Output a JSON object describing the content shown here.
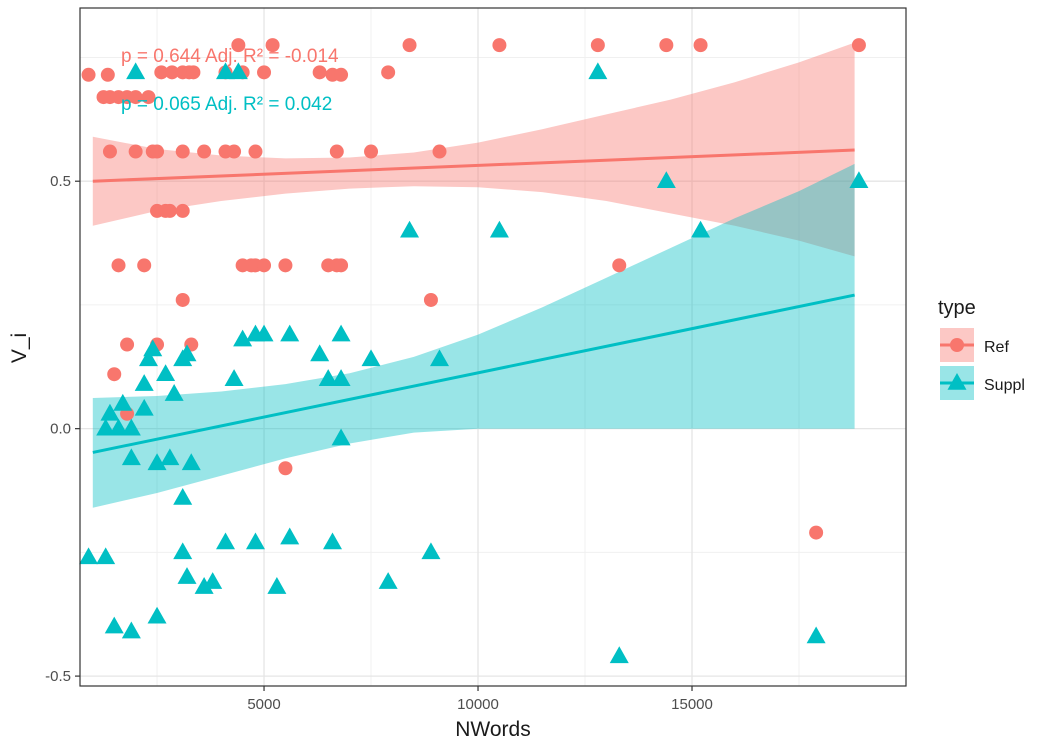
{
  "chart_data": {
    "type": "scatter",
    "xlabel": "NWords",
    "ylabel": "V_i",
    "xlim": [
      700,
      20000
    ],
    "ylim": [
      -0.52,
      0.85
    ],
    "x_ticks": [
      5000,
      10000,
      15000
    ],
    "x_tick_labels": [
      "5000",
      "10000",
      "15000"
    ],
    "y_ticks": [
      -0.5,
      0.0,
      0.5
    ],
    "y_tick_labels": [
      "-0.5",
      "0.0",
      "0.5"
    ],
    "grid": true,
    "legend": {
      "title": "type",
      "position": "right"
    },
    "annotations": [
      {
        "text": "p = 0.644 Adj. R² = -0.014",
        "series": "Ref"
      },
      {
        "text": "p = 0.065 Adj. R² = 0.042",
        "series": "Suppl"
      }
    ],
    "series": [
      {
        "name": "Ref",
        "marker": "circle",
        "color": "#F8766D",
        "band_color": "#F8766D",
        "fit": {
          "x": [
            1000,
            18800
          ],
          "y": [
            0.5,
            0.563
          ]
        },
        "band": {
          "x": [
            1000,
            2500,
            4000,
            5500,
            7000,
            8500,
            10000,
            11500,
            13000,
            14500,
            16000,
            17500,
            18800
          ],
          "upper": [
            0.59,
            0.565,
            0.552,
            0.546,
            0.548,
            0.558,
            0.578,
            0.605,
            0.635,
            0.665,
            0.7,
            0.74,
            0.78
          ],
          "lower": [
            0.41,
            0.44,
            0.46,
            0.475,
            0.485,
            0.49,
            0.488,
            0.478,
            0.46,
            0.435,
            0.41,
            0.38,
            0.348
          ]
        },
        "points": [
          [
            900,
            0.715
          ],
          [
            1350,
            0.715
          ],
          [
            1600,
            0.67
          ],
          [
            2000,
            0.67
          ],
          [
            2300,
            0.67
          ],
          [
            1800,
            0.67
          ],
          [
            1400,
            0.67
          ],
          [
            1250,
            0.67
          ],
          [
            2600,
            0.72
          ],
          [
            2850,
            0.72
          ],
          [
            3100,
            0.72
          ],
          [
            3250,
            0.72
          ],
          [
            3350,
            0.72
          ],
          [
            4100,
            0.72
          ],
          [
            4500,
            0.72
          ],
          [
            5000,
            0.72
          ],
          [
            4400,
            0.775
          ],
          [
            5200,
            0.775
          ],
          [
            8400,
            0.775
          ],
          [
            10500,
            0.775
          ],
          [
            12800,
            0.775
          ],
          [
            14400,
            0.775
          ],
          [
            15200,
            0.775
          ],
          [
            18900,
            0.775
          ],
          [
            6300,
            0.72
          ],
          [
            6600,
            0.715
          ],
          [
            6800,
            0.715
          ],
          [
            7900,
            0.72
          ],
          [
            1400,
            0.56
          ],
          [
            2000,
            0.56
          ],
          [
            2400,
            0.56
          ],
          [
            2500,
            0.56
          ],
          [
            3100,
            0.56
          ],
          [
            3600,
            0.56
          ],
          [
            4100,
            0.56
          ],
          [
            4300,
            0.56
          ],
          [
            4800,
            0.56
          ],
          [
            6700,
            0.56
          ],
          [
            7500,
            0.56
          ],
          [
            9100,
            0.56
          ],
          [
            2500,
            0.44
          ],
          [
            2700,
            0.44
          ],
          [
            2800,
            0.44
          ],
          [
            3100,
            0.44
          ],
          [
            1600,
            0.33
          ],
          [
            2200,
            0.33
          ],
          [
            4500,
            0.33
          ],
          [
            4700,
            0.33
          ],
          [
            4800,
            0.33
          ],
          [
            5000,
            0.33
          ],
          [
            5500,
            0.33
          ],
          [
            6500,
            0.33
          ],
          [
            6700,
            0.33
          ],
          [
            6800,
            0.33
          ],
          [
            13300,
            0.33
          ],
          [
            3100,
            0.26
          ],
          [
            8900,
            0.26
          ],
          [
            1800,
            0.17
          ],
          [
            2500,
            0.17
          ],
          [
            3300,
            0.17
          ],
          [
            1500,
            0.11
          ],
          [
            1800,
            0.03
          ],
          [
            5500,
            -0.08
          ],
          [
            17900,
            -0.21
          ]
        ]
      },
      {
        "name": "Suppl",
        "marker": "triangle",
        "color": "#00BFC4",
        "band_color": "#00BFC4",
        "fit": {
          "x": [
            1000,
            18800
          ],
          "y": [
            -0.048,
            0.27
          ]
        },
        "band": {
          "x": [
            1000,
            2500,
            4000,
            5500,
            7000,
            8500,
            10000,
            11500,
            13000,
            14500,
            16000,
            17500,
            18800
          ],
          "upper": [
            0.062,
            0.066,
            0.075,
            0.09,
            0.112,
            0.145,
            0.19,
            0.245,
            0.305,
            0.365,
            0.425,
            0.48,
            0.535
          ],
          "lower": [
            -0.16,
            -0.13,
            -0.095,
            -0.06,
            -0.03,
            -0.008,
            0.0,
            0.0,
            0.0,
            0.0,
            0.0,
            0.0,
            0.0
          ]
        },
        "points": [
          [
            2000,
            0.72
          ],
          [
            4100,
            0.72
          ],
          [
            4400,
            0.72
          ],
          [
            12800,
            0.72
          ],
          [
            14400,
            0.5
          ],
          [
            18900,
            0.5
          ],
          [
            8400,
            0.4
          ],
          [
            10500,
            0.4
          ],
          [
            15200,
            0.4
          ],
          [
            4500,
            0.18
          ],
          [
            4800,
            0.19
          ],
          [
            5000,
            0.19
          ],
          [
            5600,
            0.19
          ],
          [
            6800,
            0.19
          ],
          [
            2300,
            0.14
          ],
          [
            2400,
            0.16
          ],
          [
            3100,
            0.14
          ],
          [
            3200,
            0.15
          ],
          [
            6300,
            0.15
          ],
          [
            7500,
            0.14
          ],
          [
            9100,
            0.14
          ],
          [
            2700,
            0.11
          ],
          [
            2200,
            0.09
          ],
          [
            2900,
            0.07
          ],
          [
            4300,
            0.1
          ],
          [
            6500,
            0.1
          ],
          [
            6800,
            0.1
          ],
          [
            1700,
            0.05
          ],
          [
            1400,
            0.03
          ],
          [
            2200,
            0.04
          ],
          [
            1300,
            0.0
          ],
          [
            1600,
            0.0
          ],
          [
            1900,
            0.0
          ],
          [
            6800,
            -0.02
          ],
          [
            1900,
            -0.06
          ],
          [
            2500,
            -0.07
          ],
          [
            2800,
            -0.06
          ],
          [
            3300,
            -0.07
          ],
          [
            3100,
            -0.14
          ],
          [
            900,
            -0.26
          ],
          [
            1300,
            -0.26
          ],
          [
            3100,
            -0.25
          ],
          [
            4100,
            -0.23
          ],
          [
            4800,
            -0.23
          ],
          [
            5600,
            -0.22
          ],
          [
            6600,
            -0.23
          ],
          [
            8900,
            -0.25
          ],
          [
            3200,
            -0.3
          ],
          [
            3600,
            -0.32
          ],
          [
            3800,
            -0.31
          ],
          [
            5300,
            -0.32
          ],
          [
            7900,
            -0.31
          ],
          [
            1500,
            -0.4
          ],
          [
            1900,
            -0.41
          ],
          [
            2500,
            -0.38
          ],
          [
            17900,
            -0.42
          ],
          [
            13300,
            -0.46
          ]
        ]
      }
    ]
  }
}
